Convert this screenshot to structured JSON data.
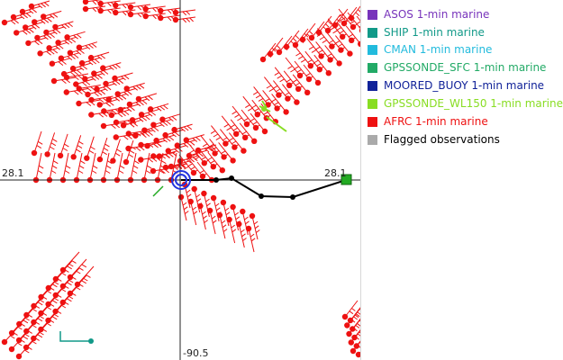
{
  "map": {
    "crosshair_labels": {
      "lat_left": "28.1",
      "lat_right": "28.1",
      "lon_bottom": "-90.5"
    },
    "colors": {
      "observation": "#ee1111",
      "track": "#000000",
      "target_ring": "#2233dd",
      "crosshair": "#222222",
      "station_marker": "#22aa22",
      "gpssonde_wl150": "#88dd22"
    },
    "icons": {
      "wind_barb": "wind-barb-icon",
      "track_point": "track-point-icon",
      "target_ring": "target-ring-icon",
      "station_marker": "station-marker-icon"
    }
  },
  "legend": {
    "items": [
      {
        "label": "ASOS 1-min marine",
        "color": "#7733bb"
      },
      {
        "label": "SHIP 1-min marine",
        "color": "#119988"
      },
      {
        "label": "CMAN 1-min marine",
        "color": "#22bbdd"
      },
      {
        "label": "GPSSONDE_SFC 1-min marine",
        "color": "#22aa66"
      },
      {
        "label": "MOORED_BUOY 1-min marine",
        "color": "#112299"
      },
      {
        "label": "GPSSONDE_WL150 1-min marine",
        "color": "#88dd22"
      },
      {
        "label": "AFRC 1-min marine",
        "color": "#ee1111"
      },
      {
        "label": "Flagged observations",
        "color": "#aaaaaa"
      }
    ]
  }
}
